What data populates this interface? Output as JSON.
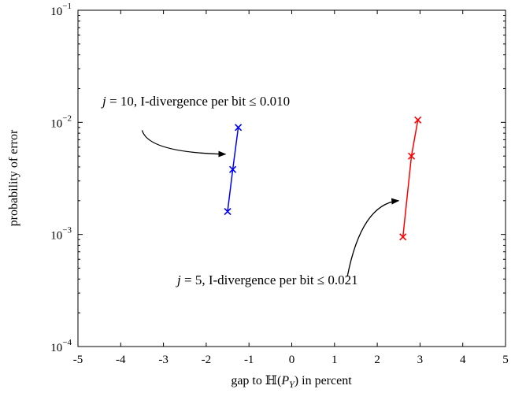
{
  "chart_data": {
    "type": "line",
    "title": "",
    "xlabel": "gap to ℍ(P_Y) in percent",
    "xlabel_parts": {
      "prefix": "gap to ",
      "math_letter": "ℍ",
      "open": "(",
      "var": "P",
      "sub": "Y",
      "close": ")",
      "suffix": " in percent"
    },
    "ylabel": "probability of error",
    "xlim": [
      -5,
      5
    ],
    "ylim": [
      0.0001,
      0.1
    ],
    "yscale": "log",
    "grid": false,
    "x_ticks": [
      {
        "value": -5,
        "label": "-5"
      },
      {
        "value": -4,
        "label": "-4"
      },
      {
        "value": -3,
        "label": "-3"
      },
      {
        "value": -2,
        "label": "-2"
      },
      {
        "value": -1,
        "label": "-1"
      },
      {
        "value": 0,
        "label": "0"
      },
      {
        "value": 1,
        "label": "1"
      },
      {
        "value": 2,
        "label": "2"
      },
      {
        "value": 3,
        "label": "3"
      },
      {
        "value": 4,
        "label": "4"
      },
      {
        "value": 5,
        "label": "5"
      }
    ],
    "y_ticks": [
      {
        "value": 0.0001,
        "base": "10",
        "exp": "−4"
      },
      {
        "value": 0.001,
        "base": "10",
        "exp": "−3"
      },
      {
        "value": 0.01,
        "base": "10",
        "exp": "−2"
      },
      {
        "value": 0.1,
        "base": "10",
        "exp": "−1"
      }
    ],
    "series": [
      {
        "color": "#0000ff",
        "marker": "x",
        "x": [
          -1.5,
          -1.38,
          -1.25
        ],
        "y": [
          0.0016,
          0.0038,
          0.009
        ]
      },
      {
        "color": "#ff0000",
        "marker": "x",
        "x": [
          2.6,
          2.8,
          2.95
        ],
        "y": [
          0.00095,
          0.005,
          0.0105
        ]
      }
    ],
    "annotations": [
      {
        "var": "j",
        "value_text": " = 10, I-divergence per bit ≤ 0.010",
        "arrow_from": [
          -3.5,
          0.0085
        ],
        "arrow_to": [
          -1.55,
          0.0052
        ]
      },
      {
        "var": "j",
        "value_text": " = 5, I-divergence per bit ≤ 0.021",
        "arrow_from": [
          1.3,
          0.00042
        ],
        "arrow_to": [
          2.5,
          0.002
        ]
      }
    ]
  }
}
